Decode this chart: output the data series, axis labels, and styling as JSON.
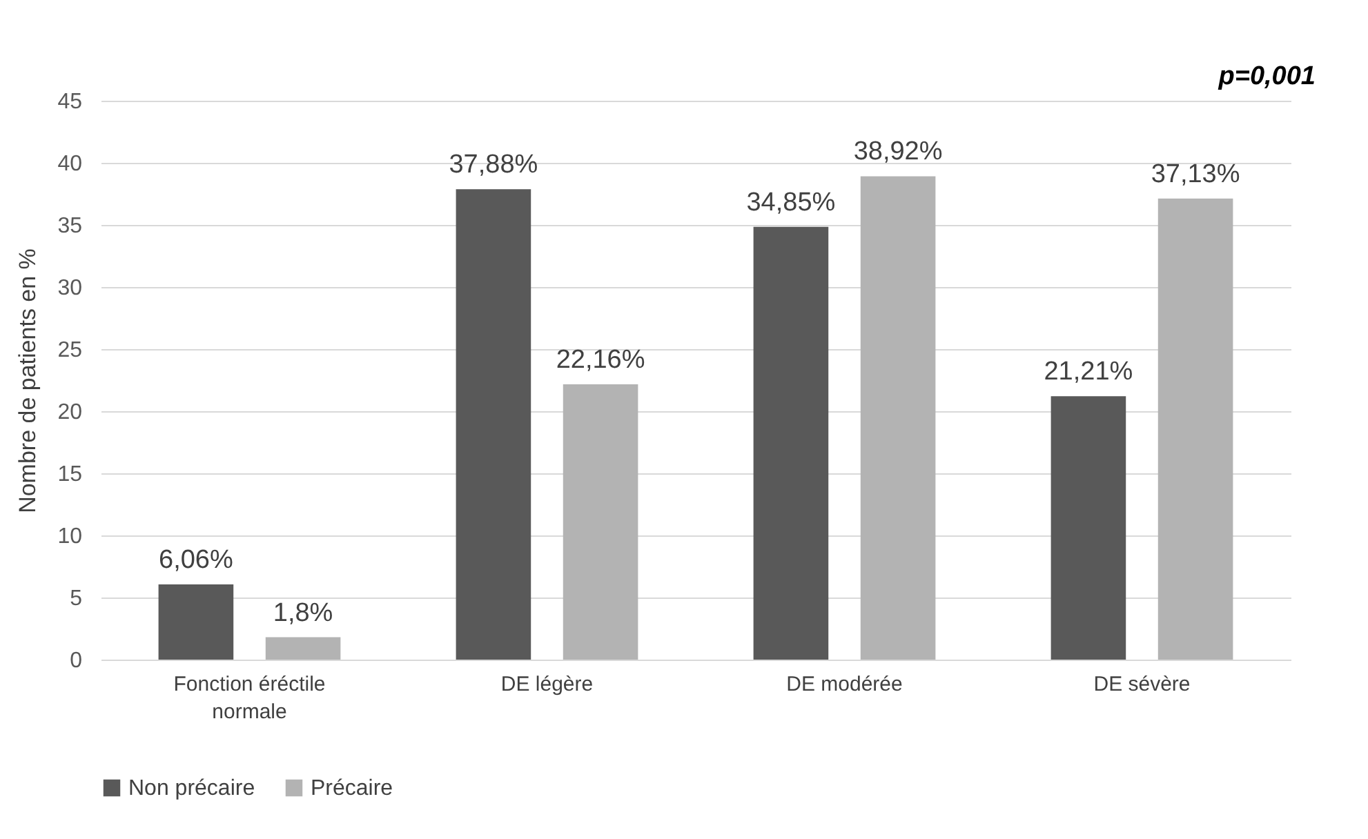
{
  "chart_data": {
    "type": "bar",
    "ylabel": "Nombre de patients en %",
    "categories": [
      "Fonction éréctile normale",
      "DE légère",
      "DE modérée",
      "DE sévère"
    ],
    "series": [
      {
        "name": "Non précaire",
        "color": "#595959",
        "values": [
          6.06,
          37.88,
          34.85,
          21.21
        ],
        "value_labels": [
          "6,06%",
          "37,88%",
          "34,85%",
          "21,21%"
        ]
      },
      {
        "name": "Précaire",
        "color": "#b3b3b3",
        "values": [
          1.8,
          22.16,
          38.92,
          37.13
        ],
        "value_labels": [
          "1,8%",
          "22,16%",
          "38,92%",
          "37,13%"
        ]
      }
    ],
    "ylim": [
      0,
      45
    ],
    "yticks": [
      0,
      5,
      10,
      15,
      20,
      25,
      30,
      35,
      40,
      45
    ],
    "grid": "y",
    "legend": "bottom",
    "annotations": [
      "p=0,001"
    ]
  }
}
